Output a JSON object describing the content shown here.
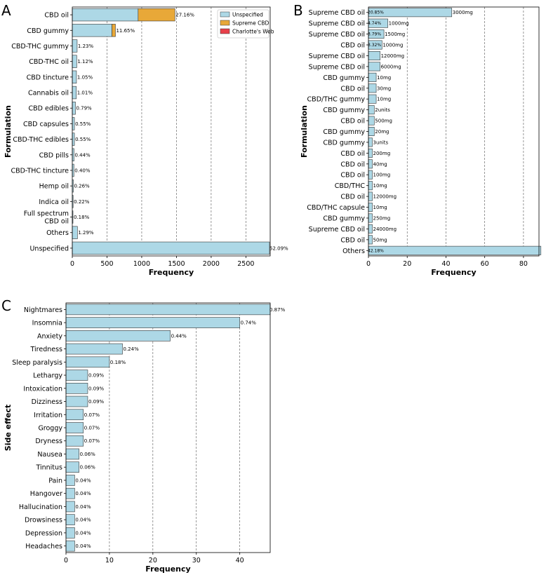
{
  "colors": {
    "unspecified": "#add8e6",
    "supreme": "#e8a838",
    "charlotte": "#e8404a"
  },
  "chart_data": [
    {
      "id": "A",
      "panel_letter": "A",
      "type": "bar",
      "orientation": "horizontal",
      "stacked": true,
      "ylabel": "Formulation",
      "xlabel": "Frequency",
      "xlim": [
        0,
        2850
      ],
      "xticks": [
        0,
        500,
        1000,
        1500,
        2000,
        2500
      ],
      "grid": "x-dashed",
      "legend": {
        "placement": "top-right",
        "entries": [
          {
            "name": "Unspecified",
            "color_key": "unspecified"
          },
          {
            "name": "Supreme CBD",
            "color_key": "supreme"
          },
          {
            "name": "Charlotte's Web",
            "color_key": "charlotte"
          }
        ]
      },
      "categories": [
        "CBD oil",
        "CBD gummy",
        "CBD-THC gummy",
        "CBD-THC oil",
        "CBD tincture",
        "Cannabis oil",
        "CBD edibles",
        "CBD capsules",
        "CBD-THC edibles",
        "CBD pills",
        "CBD-THC tincture",
        "Hemp oil",
        "Indica oil",
        "Full spectrum\nCBD oil",
        "Others",
        "Unspecified"
      ],
      "series": [
        {
          "name": "Unspecified",
          "color_key": "unspecified",
          "values": [
            948,
            571,
            70,
            64,
            60,
            58,
            45,
            31,
            31,
            25,
            23,
            15,
            12,
            10,
            74,
            2840
          ]
        },
        {
          "name": "Supreme CBD",
          "color_key": "supreme",
          "values": [
            530,
            50,
            0,
            0,
            0,
            0,
            0,
            0,
            0,
            0,
            0,
            0,
            0,
            0,
            0,
            0
          ]
        },
        {
          "name": "Charlotte's Web",
          "color_key": "charlotte",
          "values": [
            0,
            0,
            0,
            0,
            0,
            0,
            0,
            0,
            0,
            0,
            0,
            0,
            0,
            0,
            0,
            0
          ]
        }
      ],
      "data_labels": [
        "27.16%",
        "11.65%",
        "1.23%",
        "1.12%",
        "1.05%",
        "1.01%",
        "0.79%",
        "0.55%",
        "0.55%",
        "0.44%",
        "0.40%",
        "0.26%",
        "0.22%",
        "0.18%",
        "1.29%",
        "52.09%"
      ]
    },
    {
      "id": "B",
      "panel_letter": "B",
      "type": "bar",
      "orientation": "horizontal",
      "ylabel": "Formulation",
      "xlabel": "Frequency",
      "xlim": [
        0,
        88
      ],
      "xticks": [
        0,
        20,
        40,
        60,
        80
      ],
      "grid": "x-dashed",
      "categories": [
        "Supreme CBD oil",
        "Supreme CBD oil",
        "Supreme CBD oil",
        "CBD oil",
        "Supreme CBD oil",
        "Supreme CBD oil",
        "CBD gummy",
        "CBD oil",
        "CBD/THC gummy",
        "CBD gummy",
        "CBD oil",
        "CBD gummy",
        "CBD gummy",
        "CBD oil",
        "CBD oil",
        "CBD oil",
        "CBD/THC",
        "CBD oil",
        "CBD/THC capsule",
        "CBD gummy",
        "Supreme CBD oil",
        "CBD oil",
        "Others"
      ],
      "values": [
        43,
        10,
        8,
        7,
        6,
        6,
        4,
        4,
        4,
        3,
        3,
        3,
        2,
        2,
        2,
        2,
        2,
        2,
        2,
        2,
        2,
        2,
        89
      ],
      "data_labels": [
        "3000mg",
        "1000mg",
        "1500mg",
        "1000mg",
        "12000mg",
        "6000mg",
        "10mg",
        "30mg",
        "10mg",
        "2units",
        "500mg",
        "20mg",
        "3units",
        "200mg",
        "40mg",
        "100mg",
        "10mg",
        "12000mg",
        "10mg",
        "250mg",
        "24000mg",
        "50mg",
        ""
      ],
      "inner_labels": [
        "20.85%",
        "4.74%",
        "3.79%",
        "3.32%",
        "",
        "",
        "",
        "",
        "",
        "",
        "",
        "",
        "",
        "",
        "",
        "",
        "",
        "",
        "",
        "",
        "",
        "",
        "42.18%"
      ]
    },
    {
      "id": "C",
      "panel_letter": "C",
      "type": "bar",
      "orientation": "horizontal",
      "ylabel": "Side effect",
      "xlabel": "Frequency",
      "xlim": [
        0,
        47
      ],
      "xticks": [
        0,
        10,
        20,
        30,
        40
      ],
      "grid": "x-dashed",
      "categories": [
        "Nightmares",
        "Insomnia",
        "Anxiety",
        "Tiredness",
        "Sleep paralysis",
        "Lethargy",
        "Intoxication",
        "Dizziness",
        "Irritation",
        "Groggy",
        "Dryness",
        "Nausea",
        "Tinnitus",
        "Pain",
        "Hangover",
        "Hallucination",
        "Drowsiness",
        "Depression",
        "Headaches"
      ],
      "values": [
        47,
        40,
        24,
        13,
        10,
        5,
        5,
        5,
        4,
        4,
        4,
        3,
        3,
        2,
        2,
        2,
        2,
        2,
        2
      ],
      "data_labels": [
        "0.87%",
        "0.74%",
        "0.44%",
        "0.24%",
        "0.18%",
        "0.09%",
        "0.09%",
        "0.09%",
        "0.07%",
        "0.07%",
        "0.07%",
        "0.06%",
        "0.06%",
        "0.04%",
        "0.04%",
        "0.04%",
        "0.04%",
        "0.04%",
        "0.04%"
      ]
    }
  ]
}
